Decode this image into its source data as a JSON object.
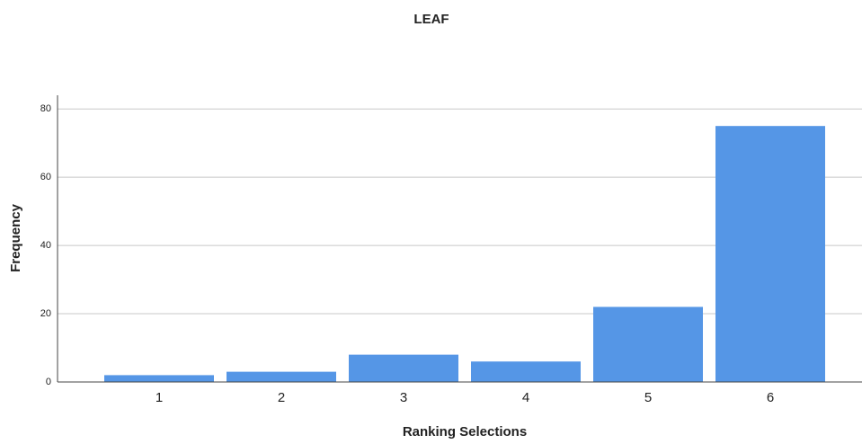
{
  "chart_data": {
    "type": "bar",
    "title": "LEAF",
    "x_label": "Ranking Selections",
    "y_label": "Frequency",
    "categories": [
      "1",
      "2",
      "3",
      "4",
      "5",
      "6"
    ],
    "values": [
      2,
      3,
      8,
      6,
      22,
      75
    ],
    "color": "#5596e6",
    "ylim": [
      0,
      84
    ],
    "yticks": [
      0,
      20,
      40,
      60,
      80
    ],
    "grid": true
  }
}
